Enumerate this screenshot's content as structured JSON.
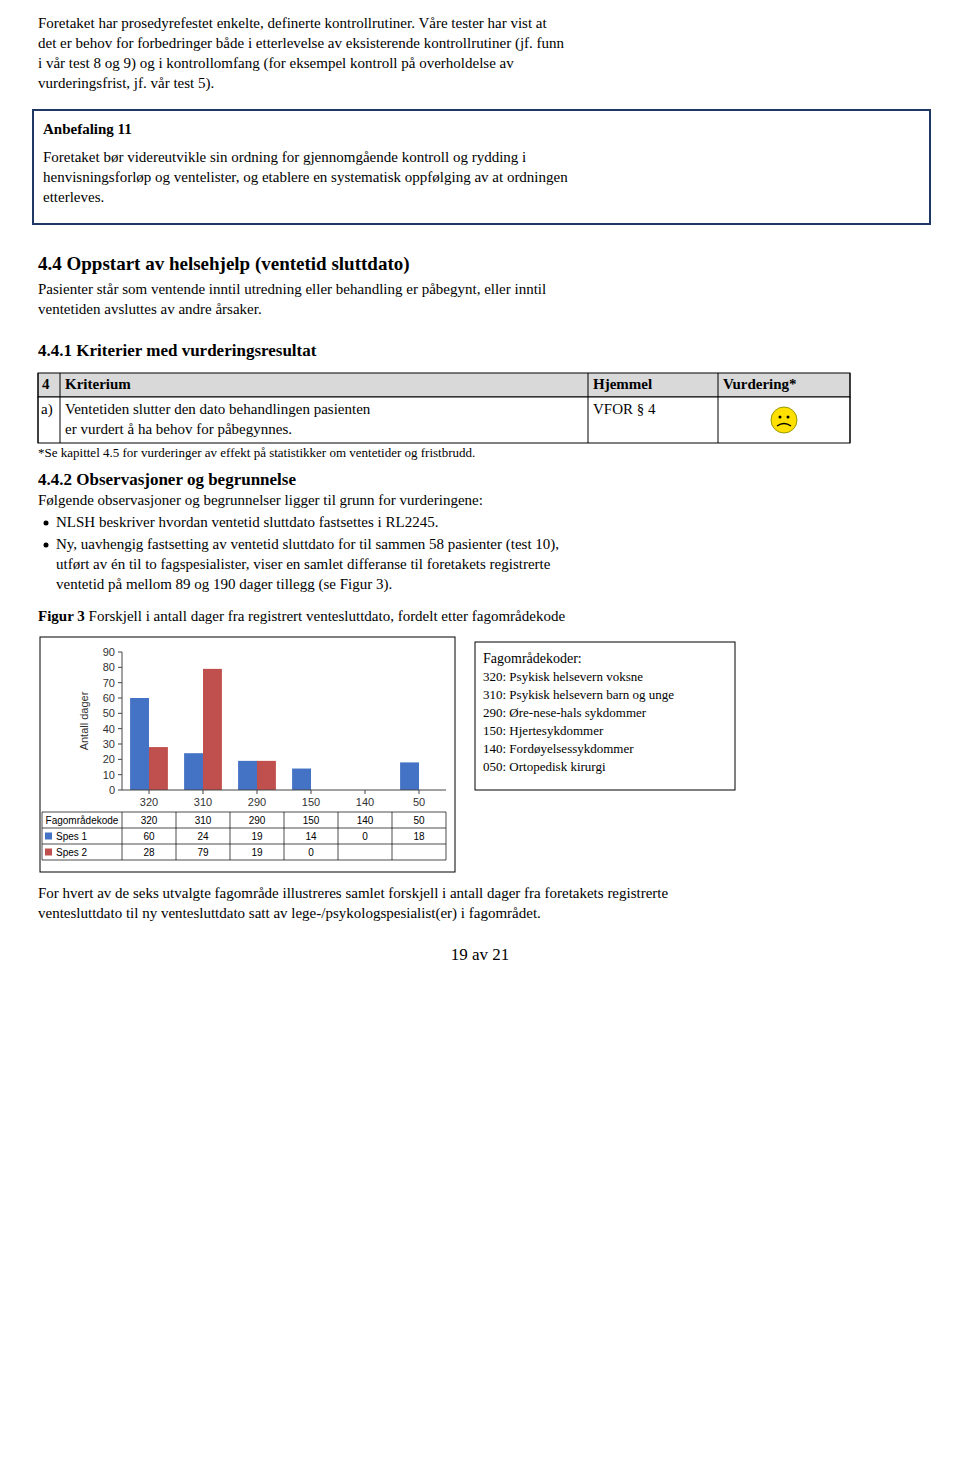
{
  "page": {
    "paragraph": [
      "Foretaket har prosedyrefestet enkelte, definerte kontrollrutiner. Våre tester har vist at",
      "det er behov for forbedringer både i etterlevelse av eksisterende kontrollrutiner (jf. funn",
      "i vår test 8 og 9) og i kontrollomfang (for eksempel kontroll på overholdelse av",
      "vurderingsfrist, jf. vår test 5)."
    ],
    "box_title": "Anbefaling 11",
    "box_lines": [
      "Foretaket bør videreutvikle sin ordning for gjennomgående kontroll og rydding i",
      "henvisningsforløp og ventelister, og etablere en systematisk oppfølging av at ordningen",
      "etterleves."
    ],
    "section_title": "4.4  Oppstart av helsehjelp (ventetid sluttdato)",
    "section_lines": [
      "Pasienter står som ventende inntil utredning eller behandling er påbegynt, eller inntil",
      "ventetiden avsluttes av andre årsaker."
    ],
    "subsection_title": "4.4.1  Kriterier med vurderingsresultat",
    "table_headers": [
      "4",
      "Kriterium",
      "Hjemmel",
      "Vurdering*"
    ],
    "table_row_label": "a)",
    "table_row_criterion": [
      "Ventetiden slutter den dato behandlingen pasienten",
      "er vurdert å ha behov for påbegynnes."
    ],
    "table_row_basis": "VFOR § 4",
    "footnote": "*Se kapittel 4.5 for vurderinger av effekt på statistikker om ventetider og fristbrudd.",
    "obs_title": "4.4.2  Observasjoner og begrunnelse",
    "obs_body": "Følgende observasjoner og begrunnelser ligger til grunn for vurderingene:",
    "bullets": [
      [
        "NLSH beskriver hvordan ventetid sluttdato fastsettes i RL2245."
      ],
      [
        "Ny, uavhengig fastsetting av ventetid sluttdato for til sammen 58 pasienter (test 10),",
        "utført av én til to fagspesialister, viser en samlet differanse til foretakets registrerte",
        "ventetid på mellom 89 og 190 dager tillegg (se Figur 3)."
      ]
    ],
    "figure_label": "Figur 3",
    "figure_caption": " Forskjell i antall dager fra registrert ventesluttdato, fordelt etter fagområdekode",
    "code_legend_title": "Fagområdekoder:",
    "code_legend_lines": [
      "320: Psykisk helsevern voksne",
      "310: Psykisk helsevern barn og unge",
      "290: Øre-nese-hals sykdommer",
      "150: Hjertesykdommer",
      "140: Fordøyelsessykdommer",
      "050: Ortopedisk kirurgi"
    ],
    "after_figure": [
      "For hvert av de seks utvalgte fagområde illustreres samlet forskjell i antall dager fra foretakets registrerte",
      "ventesluttdato til ny ventesluttdato satt av lege-/psykologspesialist(er) i fagområdet."
    ],
    "page_number": "19 av 21"
  },
  "chart_data": {
    "type": "bar",
    "categories": [
      "320",
      "310",
      "290",
      "150",
      "140",
      "50"
    ],
    "series": [
      {
        "name": "Spes 1",
        "color": "#4472C4",
        "values": [
          60,
          24,
          19,
          14,
          0,
          18
        ]
      },
      {
        "name": "Spes 2",
        "color": "#C0504D",
        "values": [
          28,
          79,
          19,
          0,
          null,
          null
        ]
      }
    ],
    "xlabel": "Fagområdekode",
    "ylabel": "Antall dager",
    "ylim": [
      0,
      90
    ],
    "yticks": [
      0,
      10,
      20,
      30,
      40,
      50,
      60,
      70,
      80,
      90
    ]
  }
}
